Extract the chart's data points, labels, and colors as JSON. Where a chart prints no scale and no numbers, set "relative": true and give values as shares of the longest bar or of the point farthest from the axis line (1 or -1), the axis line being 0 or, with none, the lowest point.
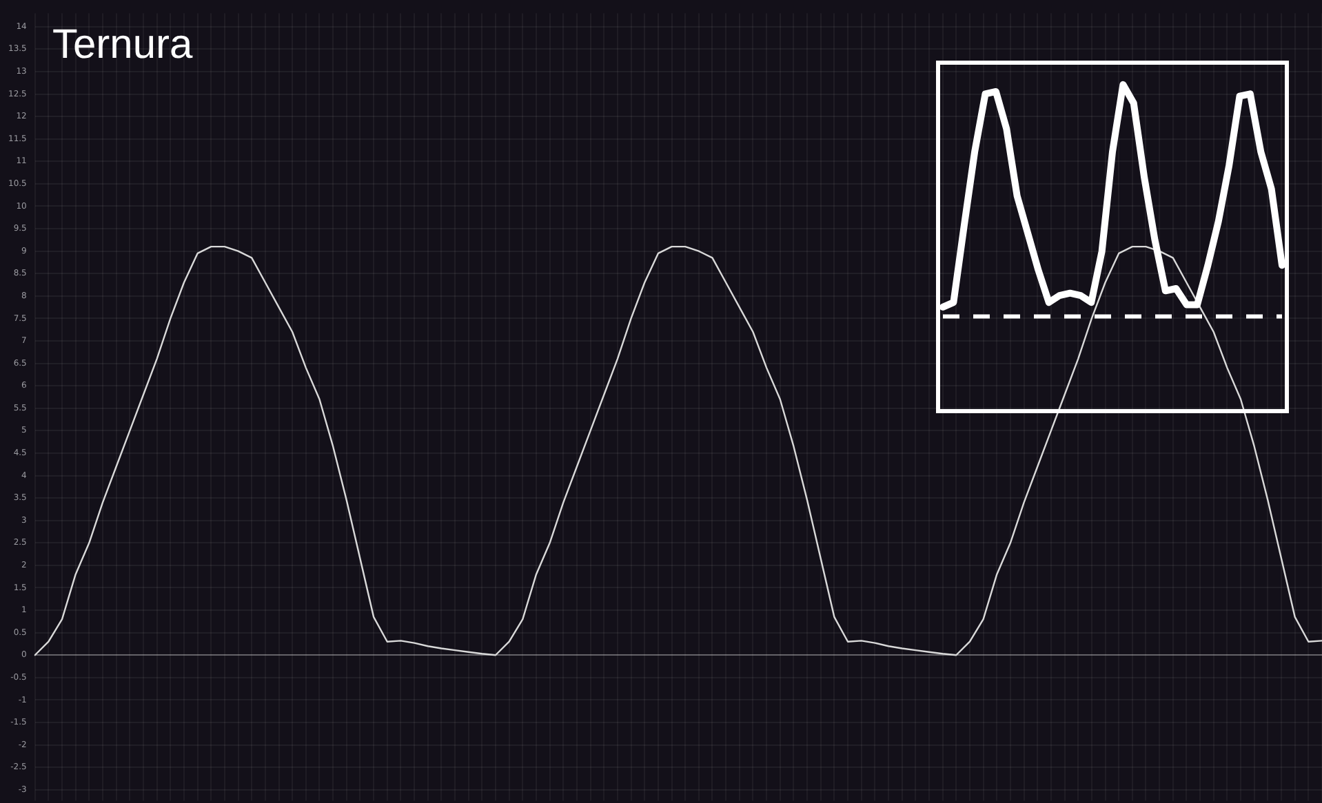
{
  "chart_data": [
    {
      "type": "line",
      "title": "Ternura",
      "categories": [
        null,
        null,
        null,
        null,
        null,
        null,
        null,
        null,
        null,
        null,
        null,
        null,
        null,
        null,
        null,
        null,
        null,
        null,
        null,
        null,
        null,
        null,
        null,
        null,
        null,
        null,
        null,
        null,
        null,
        null,
        null,
        null,
        null,
        null,
        null,
        null,
        null,
        null,
        null,
        null,
        null,
        null,
        null,
        null,
        null,
        null,
        null,
        null,
        null,
        null,
        null,
        null,
        null,
        null,
        null,
        null,
        null,
        null,
        null,
        null,
        null,
        null,
        null,
        null,
        null,
        null,
        null,
        null,
        null,
        null,
        null,
        null,
        null,
        null,
        null,
        null,
        null,
        null,
        null,
        null,
        null,
        null,
        null,
        null,
        null,
        null,
        null,
        null,
        null,
        null,
        null,
        null,
        null,
        null,
        null,
        null
      ],
      "series": [
        {
          "color": "#d9d9d9",
          "values": [
            0,
            0.3,
            0.8,
            1.8,
            2.5,
            3.4,
            4.2,
            5.0,
            5.8,
            6.6,
            7.5,
            8.3,
            8.95,
            9.1,
            9.1,
            9.0,
            8.85,
            8.3,
            7.75,
            7.2,
            6.4,
            5.7,
            4.65,
            3.45,
            2.15,
            0.85,
            0.3,
            0.32,
            0.27,
            0.2,
            0.15,
            0.11,
            0.07,
            0.03,
            0,
            0.3,
            0.8,
            1.8,
            2.5,
            3.4,
            4.2,
            5.0,
            5.8,
            6.6,
            7.5,
            8.3,
            8.95,
            9.1,
            9.1,
            9.0,
            8.85,
            8.3,
            7.75,
            7.2,
            6.4,
            5.7,
            4.65,
            3.45,
            2.15,
            0.85,
            0.3,
            0.32,
            0.27,
            0.2,
            0.15,
            0.11,
            0.07,
            0.03,
            0,
            0.3,
            0.8,
            1.8,
            2.5,
            3.4,
            4.2,
            5.0,
            5.8,
            6.6,
            7.5,
            8.3,
            8.95,
            9.1,
            9.1,
            9.0,
            8.85,
            8.3,
            7.75,
            7.2,
            6.4,
            5.7,
            4.65,
            3.45,
            2.15,
            0.85,
            0.3,
            0.32
          ]
        }
      ],
      "ylim": [
        -3,
        14.3
      ],
      "yticks": [
        -3,
        -2.5,
        -2,
        -1.5,
        -1,
        -0.5,
        0,
        0.5,
        1,
        1.5,
        2,
        2.5,
        3,
        3.5,
        4,
        4.5,
        5,
        5.5,
        6,
        6.5,
        7,
        7.5,
        8,
        8.5,
        9,
        9.5,
        10,
        10.5,
        11,
        11.5,
        12,
        12.5,
        13,
        13.5,
        14
      ],
      "grid": true,
      "marker": "none",
      "line_style": "solid",
      "tick_labels": "y"
    },
    {
      "type": "line",
      "relative": true,
      "categories": [
        null,
        null,
        null,
        null,
        null,
        null,
        null,
        null,
        null,
        null,
        null,
        null,
        null,
        null,
        null,
        null,
        null,
        null,
        null,
        null,
        null,
        null,
        null,
        null,
        null,
        null,
        null,
        null,
        null,
        null,
        null,
        null,
        null
      ],
      "series": [
        {
          "color": "#ffffff",
          "values": [
            0.04,
            0.06,
            0.39,
            0.71,
            0.96,
            0.97,
            0.81,
            0.52,
            0.36,
            0.2,
            0.06,
            0.09,
            0.1,
            0.09,
            0.06,
            0.28,
            0.71,
            1.0,
            0.92,
            0.6,
            0.33,
            0.11,
            0.12,
            0.05,
            0.05,
            0.22,
            0.41,
            0.65,
            0.95,
            0.96,
            0.71,
            0.55,
            0.22
          ]
        }
      ],
      "ref_lines": [
        {
          "axis": "y",
          "value": 0,
          "color": "#ffffff",
          "line_style": "dashed"
        }
      ],
      "line_style": "solid",
      "tick_labels": false
    }
  ]
}
